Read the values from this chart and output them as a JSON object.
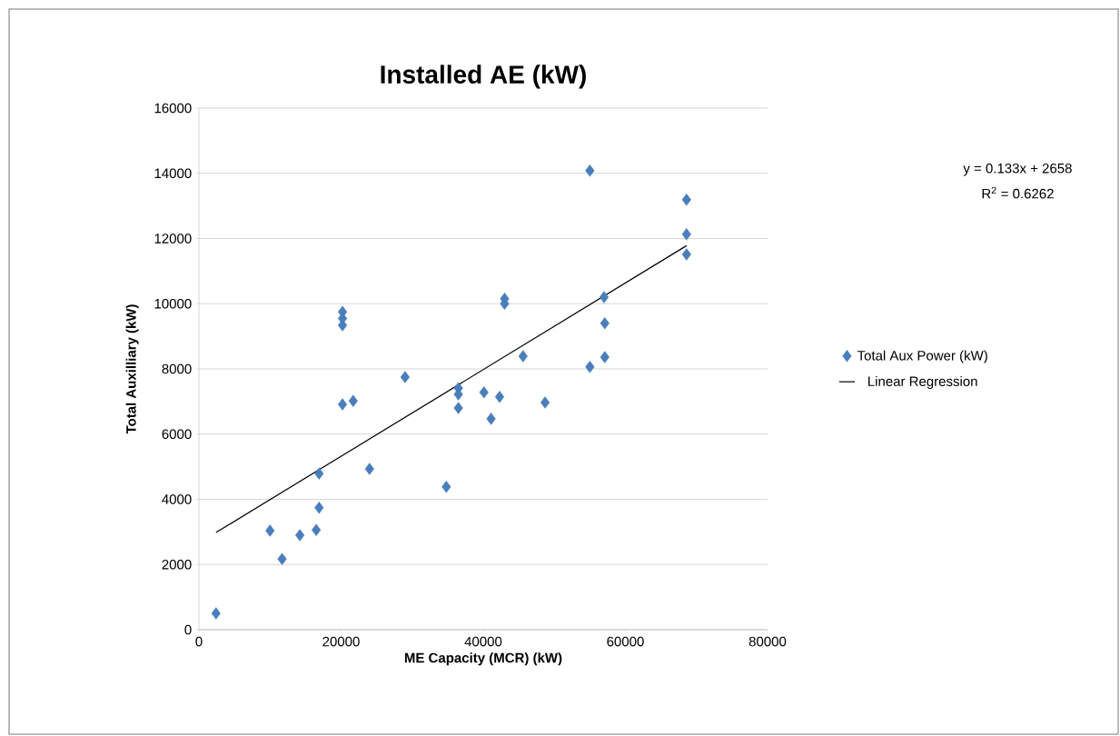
{
  "chart_data": {
    "type": "scatter",
    "title": "Installed AE (kW)",
    "xlabel": "ME Capacity (MCR) (kW)",
    "ylabel": "Total Auxilliary (kW)",
    "annotations": [
      "y = 0.133x + 2658",
      "R$^{2}$ = 0.6262"
    ],
    "series": [
      {
        "name": "Total Aux Power (kW)",
        "color": "#4a7ebb",
        "x": [
          2400,
          10000,
          11700,
          14200,
          16500,
          16900,
          16900,
          20200,
          20200,
          20200,
          20200,
          21700,
          24000,
          29000,
          34800,
          36500,
          36500,
          36500,
          40100,
          41100,
          42300,
          43000,
          43000,
          45600,
          48700,
          55000,
          55000,
          57000,
          57100,
          57100,
          68600,
          68600,
          68600
        ],
        "values": [
          500,
          3040,
          2170,
          2900,
          3060,
          3740,
          4790,
          9750,
          9550,
          9340,
          6910,
          7020,
          4930,
          7750,
          4380,
          7410,
          7220,
          6800,
          7280,
          6470,
          7140,
          10150,
          10000,
          8390,
          6970,
          14080,
          8060,
          10200,
          9400,
          8360,
          13190,
          12130,
          11510
        ]
      },
      {
        "name": "Linear Regression",
        "type": "line",
        "marker": "none",
        "color": "#000000",
        "x": [
          2400,
          68600
        ],
        "values": [
          2980,
          11780
        ]
      }
    ],
    "xlim": [
      0,
      80000
    ],
    "ylim": [
      0,
      16000
    ],
    "xticks": [
      0,
      20000,
      40000,
      60000,
      80000
    ],
    "yticks": [
      0,
      2000,
      4000,
      6000,
      8000,
      10000,
      12000,
      14000,
      16000
    ],
    "grid": "y",
    "legend": "right",
    "marker": "diamond"
  }
}
